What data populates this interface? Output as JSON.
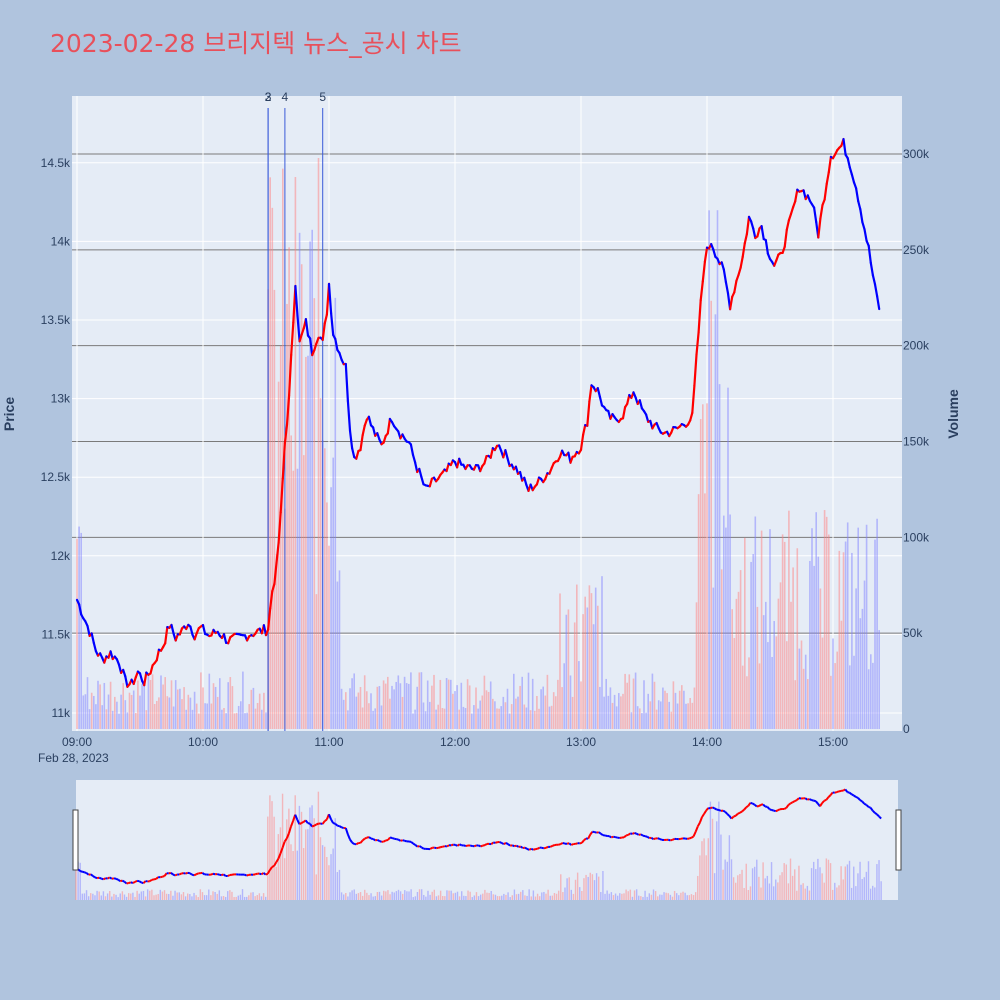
{
  "title": "2023-02-28 브리지텍 뉴스_공시 차트",
  "colors": {
    "background": "#b0c4de",
    "plot_bg": "#e5ecf6",
    "up": "#ff0000",
    "down": "#0000ff",
    "title": "#e8505b"
  },
  "chart_data": {
    "type": "candlestick+bar",
    "xlabel": "",
    "ylabel": "Price",
    "y2label": "Volume",
    "x_ticks": [
      "09:00",
      "10:00",
      "11:00",
      "12:00",
      "13:00",
      "14:00",
      "15:00"
    ],
    "x_date_label": "Feb 28, 2023",
    "y_ticks": [
      "11k",
      "11.5k",
      "12k",
      "12.5k",
      "13k",
      "13.5k",
      "14k",
      "14.5k"
    ],
    "y_tick_values": [
      11000,
      11500,
      12000,
      12500,
      13000,
      13500,
      14000,
      14500
    ],
    "y2_ticks": [
      "0",
      "50k",
      "100k",
      "150k",
      "200k",
      "250k",
      "300k"
    ],
    "y2_tick_values": [
      0,
      50000,
      100000,
      150000,
      200000,
      250000,
      300000
    ],
    "ylim": [
      10900,
      14900
    ],
    "y2lim": [
      0,
      330000
    ],
    "x_range": [
      "09:00",
      "15:30"
    ],
    "grid": true,
    "news_markers": [
      {
        "label": "2",
        "time": "10:31"
      },
      {
        "label": "3",
        "time": "10:31"
      },
      {
        "label": "4",
        "time": "10:39"
      },
      {
        "label": "5",
        "time": "10:57"
      }
    ],
    "price_path": [
      [
        "09:00",
        11720
      ],
      [
        "09:03",
        11620
      ],
      [
        "09:06",
        11520
      ],
      [
        "09:09",
        11400
      ],
      [
        "09:12",
        11340
      ],
      [
        "09:16",
        11380
      ],
      [
        "09:20",
        11330
      ],
      [
        "09:23",
        11200
      ],
      [
        "09:26",
        11180
      ],
      [
        "09:29",
        11260
      ],
      [
        "09:32",
        11200
      ],
      [
        "09:35",
        11270
      ],
      [
        "09:38",
        11360
      ],
      [
        "09:41",
        11430
      ],
      [
        "09:44",
        11560
      ],
      [
        "09:47",
        11480
      ],
      [
        "09:50",
        11520
      ],
      [
        "09:53",
        11580
      ],
      [
        "09:56",
        11500
      ],
      [
        "09:59",
        11540
      ],
      [
        "10:03",
        11490
      ],
      [
        "10:07",
        11520
      ],
      [
        "10:12",
        11460
      ],
      [
        "10:18",
        11480
      ],
      [
        "10:24",
        11510
      ],
      [
        "10:30",
        11530
      ],
      [
        "10:31",
        11540
      ],
      [
        "10:33",
        11780
      ],
      [
        "10:35",
        11920
      ],
      [
        "10:37",
        12250
      ],
      [
        "10:39",
        12720
      ],
      [
        "10:41",
        13000
      ],
      [
        "10:43",
        13500
      ],
      [
        "10:44",
        13750
      ],
      [
        "10:46",
        13350
      ],
      [
        "10:49",
        13480
      ],
      [
        "10:52",
        13300
      ],
      [
        "10:55",
        13420
      ],
      [
        "10:57",
        13350
      ],
      [
        "10:59",
        13560
      ],
      [
        "11:00",
        13730
      ],
      [
        "11:02",
        13420
      ],
      [
        "11:05",
        13300
      ],
      [
        "11:08",
        13200
      ],
      [
        "11:10",
        12820
      ],
      [
        "11:12",
        12620
      ],
      [
        "11:15",
        12700
      ],
      [
        "11:18",
        12900
      ],
      [
        "11:21",
        12800
      ],
      [
        "11:25",
        12700
      ],
      [
        "11:30",
        12880
      ],
      [
        "11:34",
        12780
      ],
      [
        "11:38",
        12720
      ],
      [
        "11:42",
        12560
      ],
      [
        "11:46",
        12420
      ],
      [
        "11:50",
        12470
      ],
      [
        "11:55",
        12520
      ],
      [
        "12:00",
        12600
      ],
      [
        "12:05",
        12560
      ],
      [
        "12:10",
        12550
      ],
      [
        "12:15",
        12600
      ],
      [
        "12:20",
        12720
      ],
      [
        "12:25",
        12620
      ],
      [
        "12:30",
        12540
      ],
      [
        "12:35",
        12420
      ],
      [
        "12:40",
        12470
      ],
      [
        "12:45",
        12540
      ],
      [
        "12:50",
        12660
      ],
      [
        "12:55",
        12620
      ],
      [
        "13:00",
        12700
      ],
      [
        "13:03",
        12860
      ],
      [
        "13:05",
        13100
      ],
      [
        "13:08",
        13050
      ],
      [
        "13:12",
        12900
      ],
      [
        "13:16",
        12860
      ],
      [
        "13:20",
        12900
      ],
      [
        "13:25",
        13050
      ],
      [
        "13:30",
        12900
      ],
      [
        "13:35",
        12820
      ],
      [
        "13:40",
        12780
      ],
      [
        "13:45",
        12800
      ],
      [
        "13:50",
        12850
      ],
      [
        "13:53",
        12880
      ],
      [
        "13:55",
        13250
      ],
      [
        "13:57",
        13600
      ],
      [
        "13:59",
        13900
      ],
      [
        "14:02",
        14000
      ],
      [
        "14:05",
        13900
      ],
      [
        "14:08",
        13800
      ],
      [
        "14:11",
        13600
      ],
      [
        "14:14",
        13750
      ],
      [
        "14:17",
        13900
      ],
      [
        "14:20",
        14150
      ],
      [
        "14:23",
        14050
      ],
      [
        "14:26",
        14100
      ],
      [
        "14:29",
        13950
      ],
      [
        "14:32",
        13850
      ],
      [
        "14:35",
        13900
      ],
      [
        "14:38",
        14050
      ],
      [
        "14:41",
        14200
      ],
      [
        "14:44",
        14350
      ],
      [
        "14:47",
        14300
      ],
      [
        "14:50",
        14250
      ],
      [
        "14:53",
        14050
      ],
      [
        "14:56",
        14300
      ],
      [
        "14:59",
        14550
      ],
      [
        "15:02",
        14580
      ],
      [
        "15:05",
        14620
      ],
      [
        "15:08",
        14500
      ],
      [
        "15:11",
        14350
      ],
      [
        "15:14",
        14150
      ],
      [
        "15:17",
        13950
      ],
      [
        "15:20",
        13700
      ],
      [
        "15:22",
        13580
      ]
    ]
  }
}
